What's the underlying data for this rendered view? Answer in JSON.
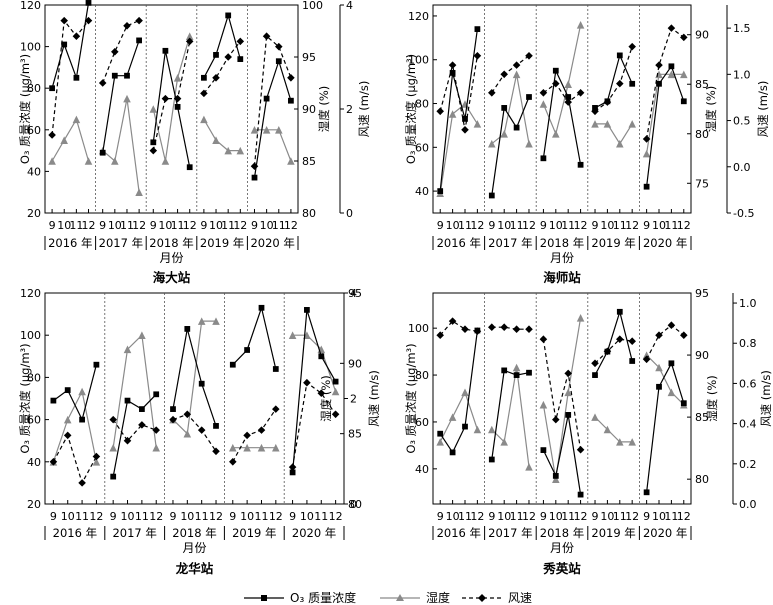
{
  "series_names": [
    "O₃ 质量浓度",
    "湿度",
    "风速"
  ],
  "xlabel": "月份",
  "months": [
    "9",
    "10",
    "11",
    "12"
  ],
  "years": [
    "2016 年",
    "2017 年",
    "2018 年",
    "2019 年",
    "2020 年"
  ],
  "colors": {
    "o3": "#000000",
    "humidity": "#8a8a8a",
    "wind": "#000000"
  },
  "chart_data": [
    {
      "type": "line",
      "title": "海大站",
      "ylabel": "O₃ 质量浓度 (μg/m³)",
      "y2label": "湿度 (%)",
      "y3label": "风速 (m/s)",
      "ylim": [
        20,
        120
      ],
      "yticks": [
        20,
        40,
        60,
        80,
        100,
        120
      ],
      "y2lim": [
        80,
        100
      ],
      "y2ticks": [
        80,
        85,
        90,
        95,
        100
      ],
      "y3lim": [
        0,
        4
      ],
      "y3ticks": [
        0,
        2,
        4
      ],
      "o3": [
        [
          80,
          101,
          85,
          121
        ],
        [
          49,
          86,
          86,
          103
        ],
        [
          54,
          98,
          71,
          42
        ],
        [
          85,
          96,
          115,
          94
        ],
        [
          37,
          75,
          93,
          74
        ]
      ],
      "humidity": [
        [
          85,
          87,
          89,
          85
        ],
        [
          86,
          85,
          91,
          82
        ],
        [
          90,
          85,
          93,
          97
        ],
        [
          89,
          87,
          86,
          86
        ],
        [
          88,
          88,
          88,
          85
        ]
      ],
      "wind": [
        [
          1.5,
          3.7,
          3.4,
          3.7
        ],
        [
          2.5,
          3.1,
          3.6,
          3.7
        ],
        [
          1.2,
          2.2,
          2.2,
          3.3
        ],
        [
          2.3,
          2.6,
          3.0,
          3.3
        ],
        [
          0.9,
          3.4,
          3.2,
          2.6
        ]
      ]
    },
    {
      "type": "line",
      "title": "海师站",
      "ylabel": "O₃ 质量浓度 (μg/m³)",
      "y2label": "湿度 (%)",
      "y3label": "风速 (m/s)",
      "ylim": [
        30,
        125
      ],
      "yticks": [
        40,
        60,
        80,
        100,
        120
      ],
      "y2lim": [
        72,
        93
      ],
      "y2ticks": [
        75,
        80,
        85,
        90
      ],
      "y3lim": [
        -0.5,
        1.75
      ],
      "y3ticks": [
        -0.5,
        0.0,
        0.5,
        1.0,
        1.5
      ],
      "o3": [
        [
          40,
          94,
          73,
          114
        ],
        [
          38,
          78,
          69,
          83
        ],
        [
          55,
          95,
          83,
          52
        ],
        [
          78,
          81,
          102,
          89
        ],
        [
          42,
          89,
          97,
          81
        ]
      ],
      "humidity": [
        [
          74,
          82,
          83,
          81
        ],
        [
          79,
          80,
          86,
          79
        ],
        [
          83,
          80,
          85,
          91
        ],
        [
          81,
          81,
          79,
          81
        ],
        [
          78,
          86,
          86,
          86
        ]
      ],
      "wind": [
        [
          0.6,
          1.1,
          0.4,
          1.2
        ],
        [
          0.8,
          1.0,
          1.1,
          1.2
        ],
        [
          0.8,
          0.9,
          0.7,
          0.8
        ],
        [
          0.6,
          0.7,
          0.9,
          1.3
        ],
        [
          0.3,
          1.1,
          1.5,
          1.4
        ]
      ]
    },
    {
      "type": "line",
      "title": "龙华站",
      "ylabel": "O₃ 质量浓度 (μg/m³)",
      "y2label": "湿度 (%)",
      "y3label": "风速 (m/s)",
      "ylim": [
        20,
        120
      ],
      "yticks": [
        20,
        40,
        60,
        80,
        100,
        120
      ],
      "y2lim": [
        80,
        95
      ],
      "y2ticks": [
        80,
        85,
        90,
        95
      ],
      "y3lim": [
        0,
        4
      ],
      "y3ticks": [
        0,
        2,
        4
      ],
      "o3": [
        [
          69,
          74,
          60,
          86
        ],
        [
          33,
          69,
          65,
          72
        ],
        [
          65,
          103,
          77,
          57
        ],
        [
          86,
          93,
          113,
          84
        ],
        [
          35,
          112,
          90,
          78
        ]
      ],
      "humidity": [
        [
          83,
          86,
          88,
          83
        ],
        [
          84,
          91,
          92,
          84
        ],
        [
          86,
          85,
          93,
          93
        ],
        [
          84,
          84,
          84,
          84
        ],
        [
          92,
          92,
          91,
          88
        ]
      ],
      "wind": [
        [
          0.8,
          1.3,
          0.4,
          0.9
        ],
        [
          1.6,
          1.2,
          1.5,
          1.4
        ],
        [
          1.6,
          1.7,
          1.4,
          1.0
        ],
        [
          0.8,
          1.3,
          1.4,
          1.8
        ],
        [
          0.7,
          2.3,
          2.1,
          1.7
        ]
      ]
    },
    {
      "type": "line",
      "title": "秀英站",
      "ylabel": "O₃ 质量浓度 (μg/m³)",
      "y2label": "湿度 (%)",
      "y3label": "风速 (m/s)",
      "ylim": [
        25,
        115
      ],
      "yticks": [
        40,
        60,
        80,
        100
      ],
      "y2lim": [
        78,
        95
      ],
      "y2ticks": [
        80,
        85,
        90,
        95
      ],
      "y3lim": [
        0,
        1.05
      ],
      "y3ticks": [
        0.0,
        0.2,
        0.4,
        0.6,
        0.8,
        1.0
      ],
      "o3": [
        [
          55,
          47,
          58,
          99
        ],
        [
          44,
          82,
          80,
          81
        ],
        [
          48,
          37,
          63,
          29
        ],
        [
          80,
          90,
          107,
          86
        ],
        [
          30,
          75,
          85,
          68
        ]
      ],
      "humidity": [
        [
          83,
          85,
          87,
          84
        ],
        [
          84,
          83,
          89,
          81
        ],
        [
          86,
          80,
          87,
          93
        ],
        [
          85,
          84,
          83,
          83
        ],
        [
          90,
          89,
          87,
          86
        ]
      ],
      "wind": [
        [
          0.84,
          0.91,
          0.87,
          0.86
        ],
        [
          0.88,
          0.88,
          0.87,
          0.87
        ],
        [
          0.82,
          0.42,
          0.65,
          0.27
        ],
        [
          0.7,
          0.76,
          0.82,
          0.81
        ],
        [
          0.72,
          0.84,
          0.89,
          0.84
        ]
      ]
    }
  ]
}
